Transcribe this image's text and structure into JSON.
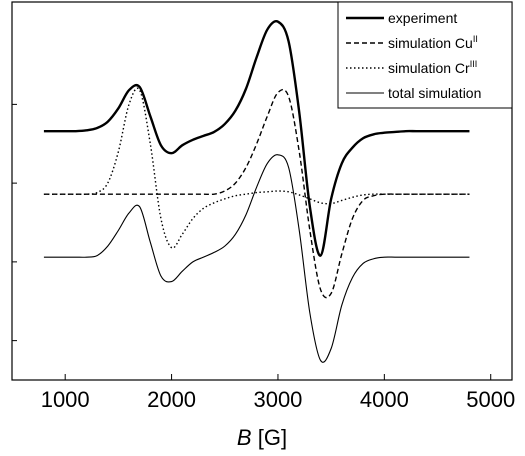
{
  "chart_data": {
    "type": "line",
    "x_label": {
      "symbol": "B",
      "unit": "[G]"
    },
    "x": [
      800,
      900,
      1000,
      1100,
      1200,
      1300,
      1400,
      1500,
      1600,
      1700,
      1800,
      1900,
      2000,
      2100,
      2200,
      2300,
      2400,
      2500,
      2600,
      2700,
      2800,
      2900,
      3000,
      3100,
      3200,
      3300,
      3400,
      3500,
      3600,
      3700,
      3800,
      3900,
      4000,
      4100,
      4200,
      4300,
      4400,
      4500,
      4600,
      4700,
      4800
    ],
    "series": [
      {
        "name": "experiment",
        "color": "#000000",
        "dash": "solid",
        "width": 2.4,
        "values": [
          3.16,
          3.16,
          3.16,
          3.16,
          3.17,
          3.2,
          3.28,
          3.45,
          3.68,
          3.72,
          3.35,
          2.98,
          2.88,
          2.98,
          3.05,
          3.1,
          3.15,
          3.25,
          3.42,
          3.7,
          4.1,
          4.45,
          4.55,
          4.3,
          3.4,
          2.2,
          1.58,
          2.3,
          2.75,
          2.95,
          3.07,
          3.12,
          3.14,
          3.15,
          3.16,
          3.16,
          3.16,
          3.16,
          3.16,
          3.16,
          3.16
        ]
      },
      {
        "name": "simulation Cu",
        "name_sup": "II",
        "color": "#000000",
        "dash": "dashed",
        "width": 1.4,
        "values": [
          2.36,
          2.36,
          2.36,
          2.36,
          2.36,
          2.36,
          2.36,
          2.36,
          2.36,
          2.36,
          2.36,
          2.36,
          2.36,
          2.36,
          2.36,
          2.36,
          2.36,
          2.4,
          2.5,
          2.7,
          3.0,
          3.35,
          3.65,
          3.6,
          2.9,
          1.9,
          1.15,
          1.1,
          1.6,
          2.05,
          2.28,
          2.34,
          2.36,
          2.36,
          2.36,
          2.36,
          2.36,
          2.36,
          2.36,
          2.36,
          2.36
        ]
      },
      {
        "name": "simulation Cr",
        "name_sup": "III",
        "color": "#000000",
        "dash": "dotted",
        "width": 1.4,
        "values": [
          2.36,
          2.36,
          2.36,
          2.36,
          2.36,
          2.38,
          2.5,
          2.9,
          3.5,
          3.68,
          3.0,
          2.05,
          1.68,
          1.85,
          2.05,
          2.18,
          2.25,
          2.3,
          2.34,
          2.36,
          2.38,
          2.39,
          2.4,
          2.39,
          2.35,
          2.3,
          2.25,
          2.24,
          2.28,
          2.32,
          2.35,
          2.36,
          2.36,
          2.36,
          2.36,
          2.36,
          2.36,
          2.36,
          2.36,
          2.36,
          2.36
        ]
      },
      {
        "name": "total simulation",
        "color": "#000000",
        "dash": "solid",
        "width": 1.1,
        "values": [
          1.56,
          1.56,
          1.56,
          1.56,
          1.56,
          1.58,
          1.7,
          1.9,
          2.12,
          2.2,
          1.75,
          1.32,
          1.25,
          1.38,
          1.5,
          1.56,
          1.62,
          1.7,
          1.85,
          2.1,
          2.45,
          2.75,
          2.86,
          2.7,
          1.9,
          0.85,
          0.25,
          0.4,
          0.95,
          1.3,
          1.48,
          1.54,
          1.56,
          1.56,
          1.56,
          1.56,
          1.56,
          1.56,
          1.56,
          1.56,
          1.56
        ]
      }
    ],
    "xlim": [
      500,
      5200
    ],
    "xticks": [
      1000,
      2000,
      3000,
      4000,
      5000
    ],
    "ylim": [
      0,
      4.8
    ],
    "yticks": [
      0.5,
      1.5,
      2.5,
      3.5
    ],
    "legend": "upper right"
  }
}
